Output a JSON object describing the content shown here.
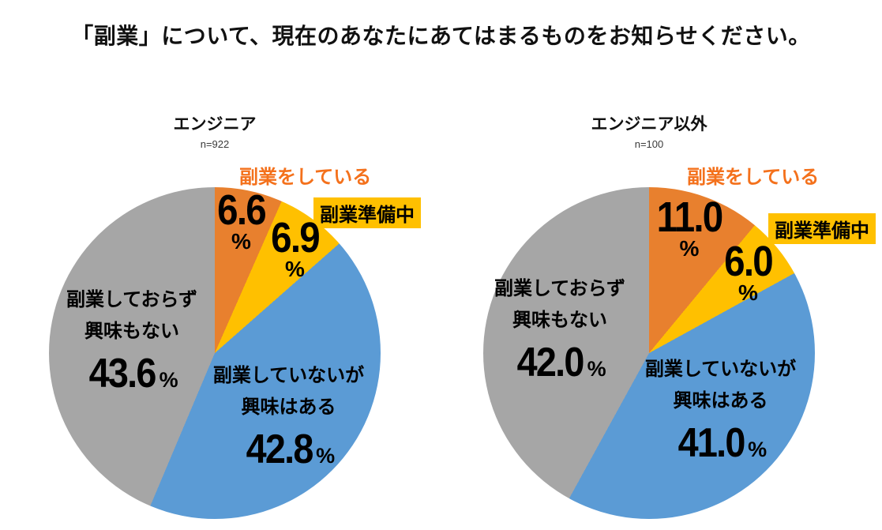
{
  "title": "「副業」について、現在のあなたにあてはまるものをお知らせください。",
  "percent_sign": "%",
  "colors": {
    "orange": "#E8802E",
    "yellow": "#FFC000",
    "blue": "#5B9BD5",
    "gray": "#A6A6A6",
    "label_orange": "#F4711C",
    "text": "#111111"
  },
  "chart_data": [
    {
      "type": "pie",
      "title": "エンジニア",
      "n_label": "n=922",
      "categories": [
        "副業をしている",
        "副業準備中",
        "副業していないが興味はある",
        "副業しておらず興味もない"
      ],
      "values": [
        6.6,
        6.9,
        42.8,
        43.6
      ],
      "value_labels": [
        "6.6",
        "6.9",
        "42.8",
        "43.6"
      ],
      "colors": [
        "#E8802E",
        "#FFC000",
        "#5B9BD5",
        "#A6A6A6"
      ],
      "label_lines": {
        "interested": [
          "副業していないが",
          "興味はある"
        ],
        "not_interested": [
          "副業しておらず",
          "興味もない"
        ]
      },
      "start_angle": 0,
      "direction": "clockwise"
    },
    {
      "type": "pie",
      "title": "エンジニア以外",
      "n_label": "n=100",
      "categories": [
        "副業をしている",
        "副業準備中",
        "副業していないが興味はある",
        "副業しておらず興味もない"
      ],
      "values": [
        11.0,
        6.0,
        41.0,
        42.0
      ],
      "value_labels": [
        "11.0",
        "6.0",
        "41.0",
        "42.0"
      ],
      "colors": [
        "#E8802E",
        "#FFC000",
        "#5B9BD5",
        "#A6A6A6"
      ],
      "label_lines": {
        "interested": [
          "副業していないが",
          "興味はある"
        ],
        "not_interested": [
          "副業しておらず",
          "興味もない"
        ]
      },
      "start_angle": 0,
      "direction": "clockwise"
    }
  ]
}
